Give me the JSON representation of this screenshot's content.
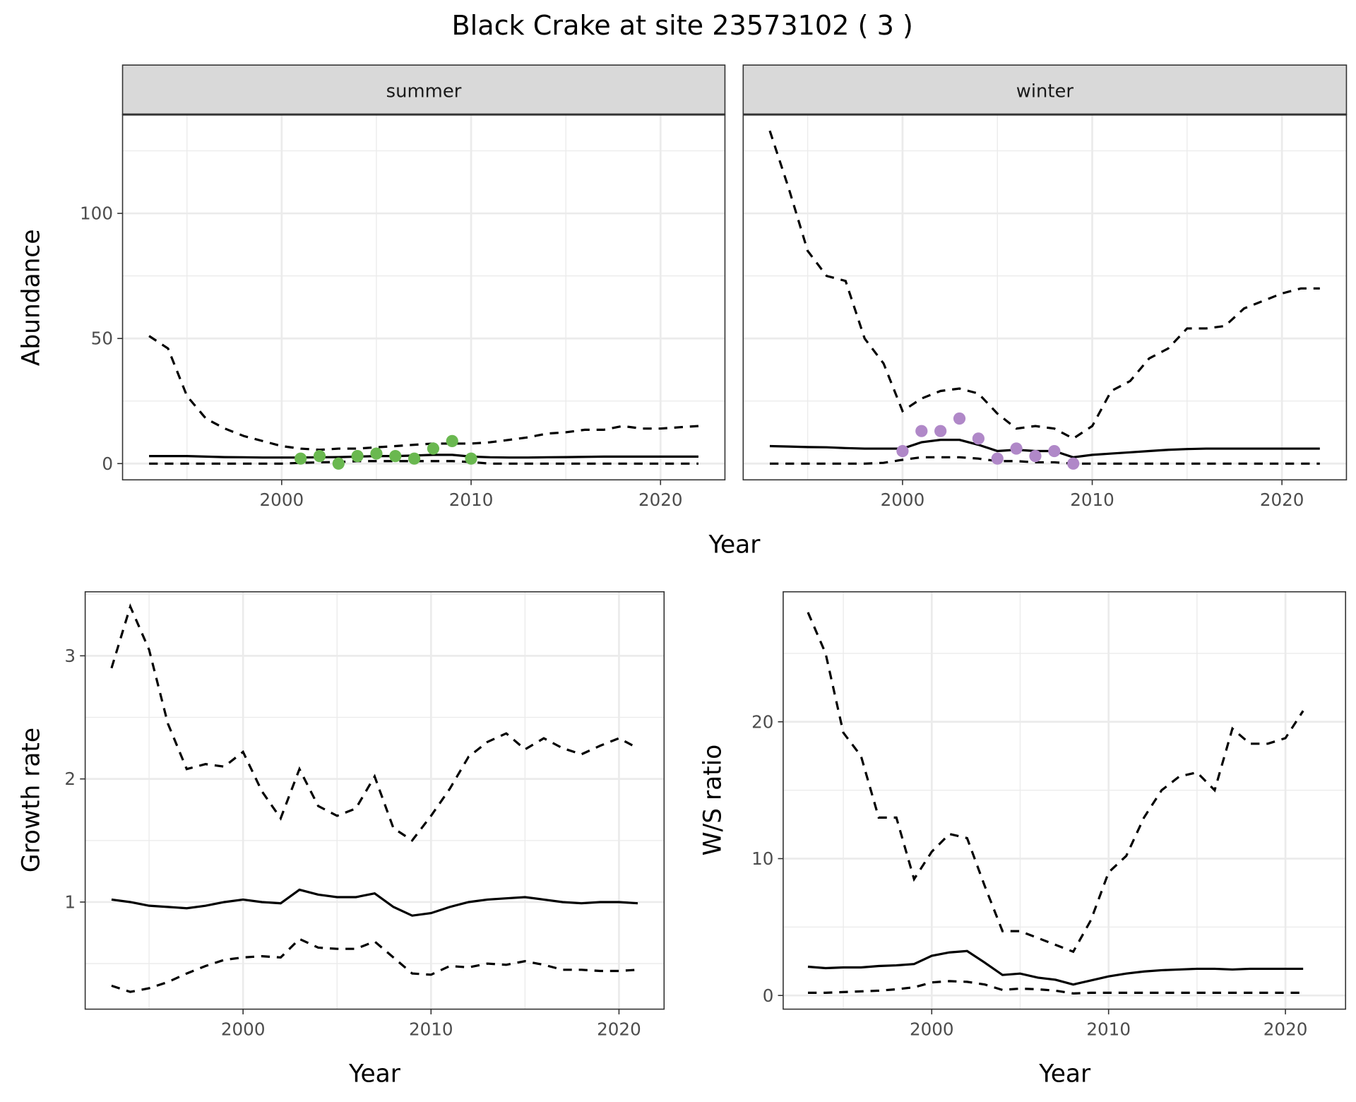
{
  "title": "Black Crake at site 23573102 ( 3 )",
  "chart_data": [
    {
      "type": "line",
      "panel": "abundance-summer",
      "strip": "summer",
      "ylabel": "Abundance",
      "xlabel": "Year",
      "xticks": [
        2000,
        2010,
        2020
      ],
      "yticks": [
        0,
        50,
        100
      ],
      "xlim": [
        1991.6,
        2023.4
      ],
      "ylim": [
        -6.5,
        139.5
      ],
      "x": [
        1993,
        1994,
        1995,
        1996,
        1997,
        1998,
        1999,
        2000,
        2001,
        2002,
        2003,
        2004,
        2005,
        2006,
        2007,
        2008,
        2009,
        2010,
        2011,
        2012,
        2013,
        2014,
        2015,
        2016,
        2017,
        2018,
        2019,
        2020,
        2021,
        2022
      ],
      "series": [
        {
          "name": "upper",
          "style": "dashed",
          "values": [
            51,
            46,
            27,
            18,
            14,
            11,
            9,
            7,
            6,
            5.5,
            6,
            6,
            6.5,
            7,
            7.5,
            8,
            8,
            8,
            8.5,
            9.5,
            10.5,
            12,
            12.5,
            13.5,
            13.5,
            15,
            14,
            14,
            14.5,
            15
          ]
        },
        {
          "name": "mean",
          "style": "solid",
          "values": [
            3,
            3,
            3,
            2.8,
            2.6,
            2.5,
            2.4,
            2.4,
            2.4,
            2.5,
            2.6,
            2.8,
            3,
            3,
            3.2,
            3.5,
            3.5,
            2.8,
            2.5,
            2.4,
            2.4,
            2.5,
            2.6,
            2.7,
            2.8,
            2.8,
            2.8,
            2.8,
            2.8,
            2.8
          ]
        },
        {
          "name": "lower",
          "style": "dashed",
          "values": [
            0,
            0,
            0,
            0,
            0,
            0,
            0,
            0,
            0.3,
            0.5,
            0.6,
            1,
            1,
            1,
            1,
            1,
            1,
            0.6,
            0,
            0,
            0,
            0,
            0,
            0,
            0,
            0,
            0,
            0,
            0,
            0
          ]
        }
      ],
      "points": {
        "color": "#6ab850",
        "x": [
          2001,
          2002,
          2003,
          2004,
          2005,
          2006,
          2007,
          2008,
          2009,
          2010
        ],
        "y": [
          2,
          3,
          0,
          3,
          4,
          3,
          2,
          6,
          9,
          2
        ]
      }
    },
    {
      "type": "line",
      "panel": "abundance-winter",
      "strip": "winter",
      "xticks": [
        2000,
        2010,
        2020
      ],
      "xlim": [
        1991.6,
        2023.4
      ],
      "ylim": [
        -6.5,
        139.5
      ],
      "x": [
        1993,
        1994,
        1995,
        1996,
        1997,
        1998,
        1999,
        2000,
        2001,
        2002,
        2003,
        2004,
        2005,
        2006,
        2007,
        2008,
        2009,
        2010,
        2011,
        2012,
        2013,
        2014,
        2015,
        2016,
        2017,
        2018,
        2019,
        2020,
        2021,
        2022
      ],
      "series": [
        {
          "name": "upper",
          "style": "dashed",
          "values": [
            133,
            110,
            85,
            75,
            73,
            50,
            40,
            21,
            26,
            29,
            30,
            28,
            20,
            14,
            15,
            14,
            10,
            15,
            29,
            33,
            42,
            46,
            54,
            54,
            55,
            62,
            65,
            68,
            70,
            70
          ]
        },
        {
          "name": "mean",
          "style": "solid",
          "values": [
            7,
            6.8,
            6.6,
            6.5,
            6.2,
            6,
            6,
            6,
            8.5,
            9.5,
            9.5,
            7.5,
            5,
            5.5,
            5,
            5,
            2.5,
            3.5,
            4,
            4.5,
            5,
            5.5,
            5.8,
            6,
            6,
            6,
            6,
            6,
            6,
            6
          ]
        },
        {
          "name": "lower",
          "style": "dashed",
          "values": [
            0,
            0,
            0,
            0,
            0,
            0,
            0.3,
            1.5,
            2.5,
            2.5,
            2.5,
            2,
            1,
            1,
            0.5,
            0.5,
            0,
            0,
            0,
            0,
            0,
            0,
            0,
            0,
            0,
            0,
            0,
            0,
            0,
            0
          ]
        }
      ],
      "points": {
        "color": "#b088c8",
        "x": [
          2000,
          2001,
          2002,
          2003,
          2004,
          2005,
          2006,
          2007,
          2008,
          2009
        ],
        "y": [
          5,
          13,
          13,
          18,
          10,
          2,
          6,
          3,
          5,
          0
        ]
      }
    },
    {
      "type": "line",
      "panel": "growth-rate",
      "ylabel": "Growth rate",
      "xlabel": "Year",
      "xticks": [
        2000,
        2010,
        2020
      ],
      "yticks": [
        1,
        2,
        3
      ],
      "xlim": [
        1991.6,
        2022.4
      ],
      "ylim": [
        0.13,
        3.52
      ],
      "x": [
        1993,
        1994,
        1995,
        1996,
        1997,
        1998,
        1999,
        2000,
        2001,
        2002,
        2003,
        2004,
        2005,
        2006,
        2007,
        2008,
        2009,
        2010,
        2011,
        2012,
        2013,
        2014,
        2015,
        2016,
        2017,
        2018,
        2019,
        2020,
        2021
      ],
      "series": [
        {
          "name": "upper",
          "style": "dashed",
          "values": [
            2.9,
            3.4,
            3.05,
            2.45,
            2.08,
            2.12,
            2.1,
            2.22,
            1.9,
            1.68,
            2.08,
            1.78,
            1.7,
            1.76,
            2.02,
            1.6,
            1.5,
            1.7,
            1.92,
            2.18,
            2.3,
            2.37,
            2.24,
            2.33,
            2.25,
            2.2,
            2.27,
            2.33,
            2.25
          ]
        },
        {
          "name": "mean",
          "style": "solid",
          "values": [
            1.02,
            1.0,
            0.97,
            0.96,
            0.95,
            0.97,
            1.0,
            1.02,
            1.0,
            0.99,
            1.1,
            1.06,
            1.04,
            1.04,
            1.07,
            0.96,
            0.89,
            0.91,
            0.96,
            1.0,
            1.02,
            1.03,
            1.04,
            1.02,
            1.0,
            0.99,
            1.0,
            1.0,
            0.99
          ]
        },
        {
          "name": "lower",
          "style": "dashed",
          "values": [
            0.32,
            0.27,
            0.3,
            0.35,
            0.42,
            0.48,
            0.53,
            0.55,
            0.56,
            0.55,
            0.7,
            0.63,
            0.62,
            0.62,
            0.68,
            0.55,
            0.42,
            0.41,
            0.48,
            0.47,
            0.5,
            0.49,
            0.52,
            0.49,
            0.45,
            0.45,
            0.44,
            0.44,
            0.45
          ]
        }
      ]
    },
    {
      "type": "line",
      "panel": "ws-ratio",
      "ylabel": "W/S ratio",
      "xlabel": "Year",
      "xticks": [
        2000,
        2010,
        2020
      ],
      "yticks": [
        0,
        10,
        20
      ],
      "xlim": [
        1991.6,
        2023.4
      ],
      "ylim": [
        -1.0,
        29.5
      ],
      "x": [
        1993,
        1994,
        1995,
        1996,
        1997,
        1998,
        1999,
        2000,
        2001,
        2002,
        2003,
        2004,
        2005,
        2006,
        2007,
        2008,
        2009,
        2010,
        2011,
        2012,
        2013,
        2014,
        2015,
        2016,
        2017,
        2018,
        2019,
        2020,
        2021
      ],
      "series": [
        {
          "name": "upper",
          "style": "dashed",
          "values": [
            28,
            25,
            19.2,
            17.5,
            13,
            13,
            8.5,
            10.5,
            11.8,
            11.5,
            8,
            4.7,
            4.7,
            4.2,
            3.7,
            3.2,
            5.5,
            9,
            10.2,
            13,
            15,
            16,
            16.3,
            15,
            19.5,
            18.4,
            18.4,
            18.8,
            20.8
          ]
        },
        {
          "name": "mean",
          "style": "solid",
          "values": [
            2.1,
            2.0,
            2.05,
            2.05,
            2.15,
            2.2,
            2.3,
            2.9,
            3.15,
            3.25,
            2.4,
            1.5,
            1.6,
            1.3,
            1.15,
            0.8,
            1.1,
            1.4,
            1.6,
            1.75,
            1.85,
            1.9,
            1.95,
            1.95,
            1.9,
            1.95,
            1.95,
            1.95,
            1.95
          ]
        },
        {
          "name": "lower",
          "style": "dashed",
          "values": [
            0.2,
            0.2,
            0.25,
            0.3,
            0.35,
            0.45,
            0.6,
            0.95,
            1.05,
            1.0,
            0.8,
            0.4,
            0.5,
            0.45,
            0.35,
            0.15,
            0.2,
            0.2,
            0.2,
            0.2,
            0.2,
            0.2,
            0.2,
            0.2,
            0.2,
            0.2,
            0.2,
            0.2,
            0.2
          ]
        }
      ]
    }
  ]
}
